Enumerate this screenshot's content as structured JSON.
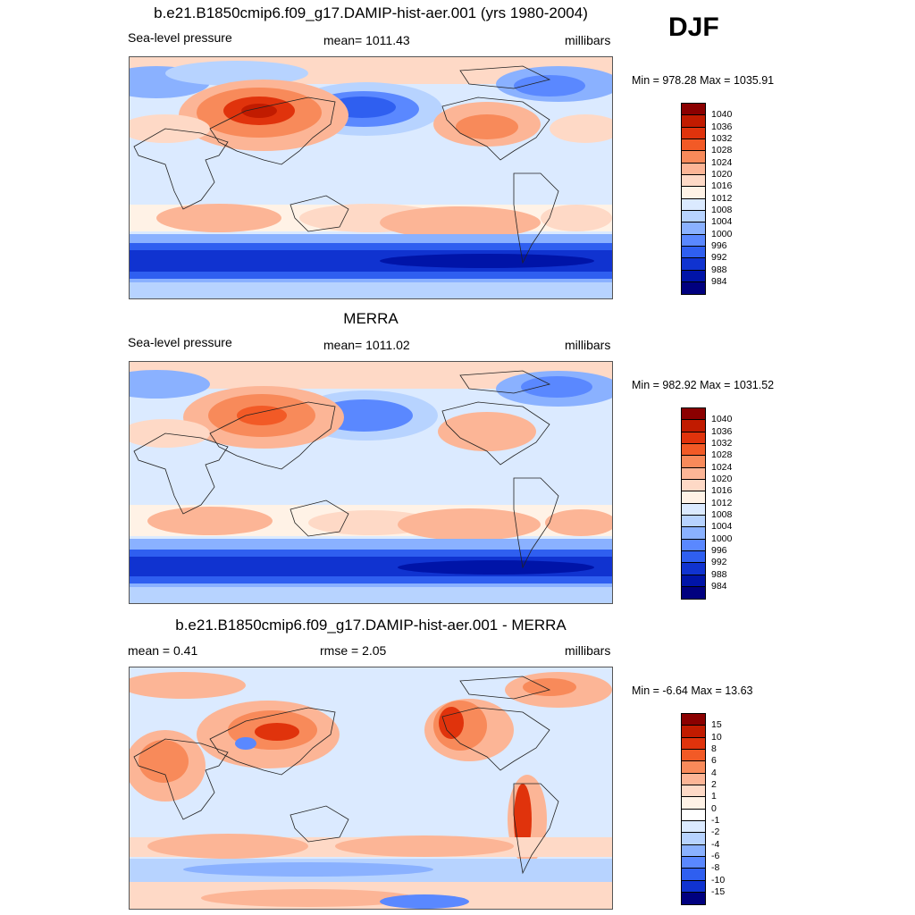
{
  "season": "DJF",
  "panels": [
    {
      "title": "b.e21.B1850cmip6.f09_g17.DAMIP-hist-aer.001 (yrs 1980-2004)",
      "left_label": "Sea-level pressure",
      "center_label": "mean= 1011.43",
      "units": "millibars",
      "minmax": "Min = 978.28 Max = 1035.91",
      "colorbar": {
        "labels": [
          "1040",
          "1036",
          "1032",
          "1028",
          "1024",
          "1020",
          "1016",
          "1012",
          "1008",
          "1004",
          "1000",
          "996",
          "992",
          "988",
          "984"
        ],
        "colors": [
          "#8b0000",
          "#c11b00",
          "#e0330c",
          "#f25a26",
          "#f88a5a",
          "#fcb596",
          "#fed9c6",
          "#fff2e6",
          "#dbeaff",
          "#b7d3ff",
          "#8ab1ff",
          "#5a88ff",
          "#2f5ff0",
          "#1033d0",
          "#0014a8",
          "#00007f"
        ]
      }
    },
    {
      "title": "MERRA",
      "left_label": "Sea-level pressure",
      "center_label": "mean= 1011.02",
      "units": "millibars",
      "minmax": "Min = 982.92 Max = 1031.52",
      "colorbar": {
        "labels": [
          "1040",
          "1036",
          "1032",
          "1028",
          "1024",
          "1020",
          "1016",
          "1012",
          "1008",
          "1004",
          "1000",
          "996",
          "992",
          "988",
          "984"
        ],
        "colors": [
          "#8b0000",
          "#c11b00",
          "#e0330c",
          "#f25a26",
          "#f88a5a",
          "#fcb596",
          "#fed9c6",
          "#fff2e6",
          "#dbeaff",
          "#b7d3ff",
          "#8ab1ff",
          "#5a88ff",
          "#2f5ff0",
          "#1033d0",
          "#0014a8",
          "#00007f"
        ]
      }
    },
    {
      "title": "b.e21.B1850cmip6.f09_g17.DAMIP-hist-aer.001 - MERRA",
      "left_label": "mean =   0.41",
      "center_label": "rmse =   2.05",
      "units": "millibars",
      "minmax": "Min =  -6.64 Max =  13.63",
      "colorbar": {
        "labels": [
          "15",
          "10",
          "8",
          "6",
          "4",
          "2",
          "1",
          "0",
          "-1",
          "-2",
          "-4",
          "-6",
          "-8",
          "-10",
          "-15"
        ],
        "colors": [
          "#8b0000",
          "#c11b00",
          "#e0330c",
          "#f25a26",
          "#f88a5a",
          "#fcb596",
          "#fed9c6",
          "#fff2e6",
          "#ffffff",
          "#dbeaff",
          "#b7d3ff",
          "#8ab1ff",
          "#5a88ff",
          "#2f5ff0",
          "#1033d0",
          "#00007f"
        ]
      }
    }
  ]
}
